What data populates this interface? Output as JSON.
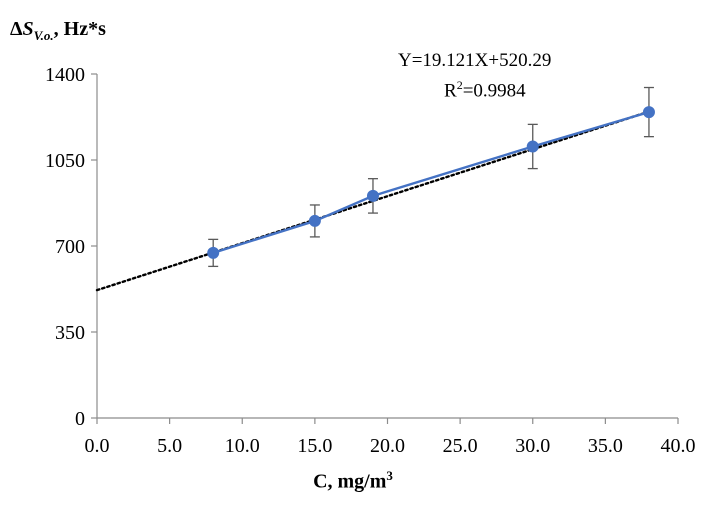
{
  "chart_data": {
    "type": "scatter",
    "ylabel": {
      "prefix": "Δ",
      "symbol": "S",
      "subscript": "V.o.",
      "suffix": ", Hz*s"
    },
    "xlabel": {
      "text": "C, mg/m",
      "superscript": "3"
    },
    "annotations": {
      "equation": "Y=19.121X+520.29",
      "r2_prefix": "R",
      "r2_sup": "2",
      "r2_value": "=0.9984"
    },
    "xlim": [
      0,
      40
    ],
    "ylim": [
      0,
      1400
    ],
    "x_ticks": [
      0,
      5,
      10,
      15,
      20,
      25,
      30,
      35,
      40
    ],
    "x_tick_labels": [
      "0.0",
      "5.0",
      "10.0",
      "15.0",
      "20.0",
      "25.0",
      "30.0",
      "35.0",
      "40.0"
    ],
    "y_ticks": [
      0,
      350,
      700,
      1050,
      1400
    ],
    "y_tick_labels": [
      "0",
      "350",
      "700",
      "1050",
      "1400"
    ],
    "grid": false,
    "series": [
      {
        "x": [
          8,
          15,
          19,
          30,
          38
        ],
        "y": [
          672,
          802,
          904,
          1105,
          1245
        ],
        "error": [
          55,
          65,
          70,
          90,
          100
        ],
        "color": "#4472C4"
      }
    ],
    "trendline": {
      "slope": 19.121,
      "intercept": 520.29,
      "x_range": [
        0,
        38
      ],
      "color": "#000000",
      "style": "dotted"
    }
  }
}
